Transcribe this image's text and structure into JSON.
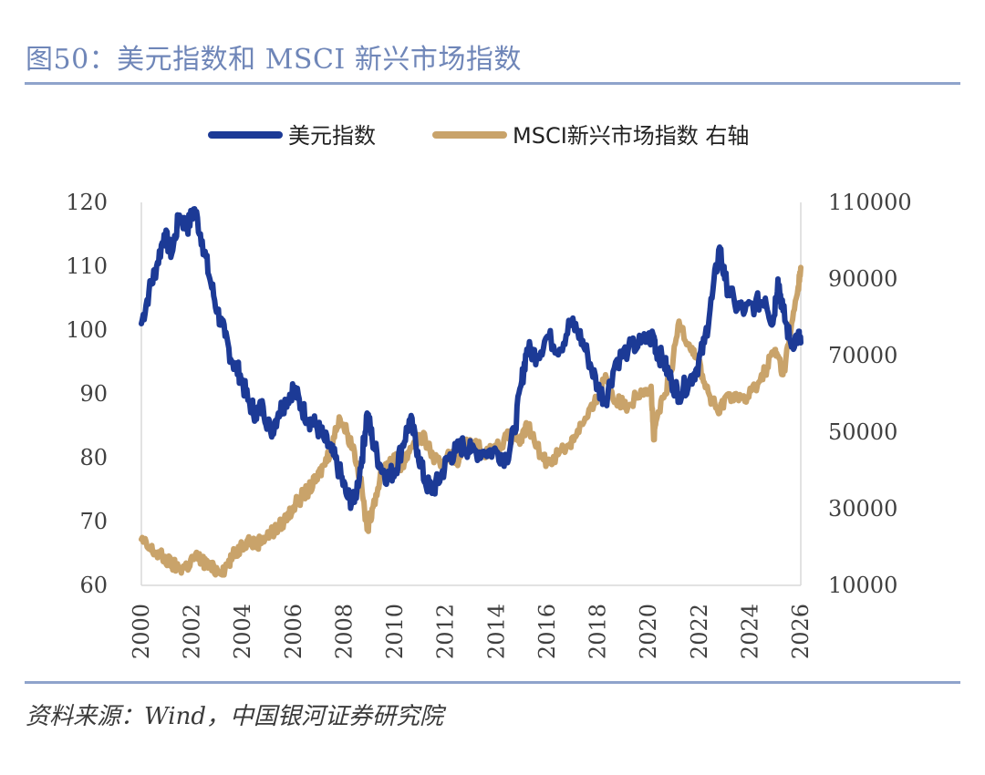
{
  "header": {
    "title": "图50：美元指数和 MSCI 新兴市场指数"
  },
  "footer": {
    "source": "资料来源：Wind，中国银河证券研究院"
  },
  "chart_data": {
    "type": "line",
    "title": "图50：美元指数和 MSCI 新兴市场指数",
    "xlabel": "",
    "ylabel": "",
    "x_ticks": [
      "2000",
      "2002",
      "2004",
      "2006",
      "2008",
      "2010",
      "2012",
      "2014",
      "2016",
      "2018",
      "2020",
      "2022",
      "2024",
      "2026"
    ],
    "xlim": [
      2000,
      2026
    ],
    "left_axis": {
      "ylim": [
        60,
        120
      ],
      "ticks": [
        "60",
        "70",
        "80",
        "90",
        "100",
        "110",
        "120"
      ]
    },
    "right_axis": {
      "ylim": [
        10000,
        110000
      ],
      "ticks": [
        "10000",
        "30000",
        "50000",
        "70000",
        "90000",
        "110000"
      ]
    },
    "legend": {
      "position": "top-center"
    },
    "series": [
      {
        "name": "美元指数",
        "axis": "left",
        "color": "#1c3a96",
        "x": [
          2000.0,
          2000.3,
          2000.6,
          2000.9,
          2001.2,
          2001.5,
          2001.8,
          2002.1,
          2002.4,
          2002.7,
          2003.0,
          2003.3,
          2003.6,
          2003.9,
          2004.2,
          2004.5,
          2004.8,
          2005.1,
          2005.4,
          2005.7,
          2006.0,
          2006.3,
          2006.6,
          2006.9,
          2007.2,
          2007.5,
          2007.8,
          2008.1,
          2008.4,
          2008.7,
          2008.9,
          2009.1,
          2009.4,
          2009.7,
          2010.0,
          2010.3,
          2010.6,
          2010.9,
          2011.2,
          2011.5,
          2011.8,
          2012.1,
          2012.4,
          2012.7,
          2013.0,
          2013.5,
          2014.0,
          2014.4,
          2014.7,
          2015.0,
          2015.2,
          2015.6,
          2016.0,
          2016.5,
          2016.9,
          2017.2,
          2017.6,
          2018.0,
          2018.3,
          2018.7,
          2019.2,
          2019.7,
          2020.2,
          2020.3,
          2020.6,
          2020.9,
          2021.2,
          2021.6,
          2021.9,
          2022.2,
          2022.5,
          2022.8,
          2023.0,
          2023.4,
          2023.8,
          2024.2,
          2024.6,
          2024.9,
          2025.1,
          2025.3,
          2025.6,
          2025.9,
          2026.0
        ],
        "values": [
          101,
          106,
          110,
          115,
          112,
          118,
          116,
          119,
          114,
          108,
          103,
          99,
          95,
          93,
          89,
          87,
          88,
          84,
          87,
          89,
          91,
          88,
          86,
          85,
          83,
          81,
          78,
          74,
          73,
          80,
          87,
          83,
          79,
          77,
          78,
          82,
          86,
          81,
          76,
          75,
          77,
          80,
          81,
          82,
          81,
          81,
          81,
          80,
          84,
          92,
          97,
          96,
          99,
          97,
          101,
          100,
          96,
          91,
          89,
          95,
          97,
          98,
          99,
          97,
          95,
          92,
          90,
          92,
          94,
          98,
          105,
          113,
          108,
          104,
          103,
          104,
          105,
          101,
          108,
          103,
          98,
          99,
          98
        ]
      },
      {
        "name": "MSCI新兴市场指数 右轴",
        "axis": "right",
        "color": "#c9a36a",
        "x": [
          2000.0,
          2000.3,
          2000.6,
          2000.9,
          2001.2,
          2001.5,
          2001.8,
          2002.1,
          2002.4,
          2002.7,
          2003.0,
          2003.3,
          2003.6,
          2003.9,
          2004.2,
          2004.5,
          2004.8,
          2005.1,
          2005.4,
          2005.7,
          2006.0,
          2006.3,
          2006.6,
          2006.9,
          2007.2,
          2007.5,
          2007.8,
          2008.1,
          2008.4,
          2008.7,
          2008.9,
          2009.1,
          2009.4,
          2009.7,
          2010.0,
          2010.3,
          2010.6,
          2010.9,
          2011.2,
          2011.5,
          2011.8,
          2012.1,
          2012.4,
          2012.7,
          2013.0,
          2013.5,
          2014.0,
          2014.4,
          2014.7,
          2015.0,
          2015.2,
          2015.6,
          2016.0,
          2016.5,
          2016.9,
          2017.2,
          2017.6,
          2018.0,
          2018.3,
          2018.7,
          2019.2,
          2019.7,
          2020.1,
          2020.2,
          2020.3,
          2020.6,
          2020.9,
          2021.2,
          2021.6,
          2021.9,
          2022.2,
          2022.5,
          2022.8,
          2023.0,
          2023.4,
          2023.8,
          2024.2,
          2024.6,
          2024.9,
          2025.1,
          2025.3,
          2025.6,
          2025.9,
          2026.0
        ],
        "values": [
          22000,
          19500,
          18500,
          17000,
          15500,
          14500,
          15000,
          17500,
          16500,
          14500,
          14000,
          14500,
          17500,
          20000,
          22000,
          20500,
          22500,
          23500,
          25000,
          27500,
          30500,
          33000,
          35000,
          37500,
          41500,
          46000,
          54000,
          50000,
          45000,
          35000,
          24500,
          30000,
          37500,
          42000,
          43000,
          41000,
          46000,
          48500,
          48000,
          43500,
          41000,
          45000,
          42000,
          46000,
          47500,
          45000,
          46000,
          48500,
          49000,
          47500,
          52000,
          46000,
          42000,
          45000,
          47000,
          50500,
          54000,
          59000,
          65000,
          58000,
          57000,
          61000,
          62000,
          48000,
          53000,
          59000,
          66000,
          79000,
          73000,
          70000,
          63000,
          58000,
          55000,
          59000,
          60000,
          58000,
          62000,
          66000,
          71000,
          70000,
          65000,
          76000,
          88000,
          93000
        ]
      }
    ]
  }
}
